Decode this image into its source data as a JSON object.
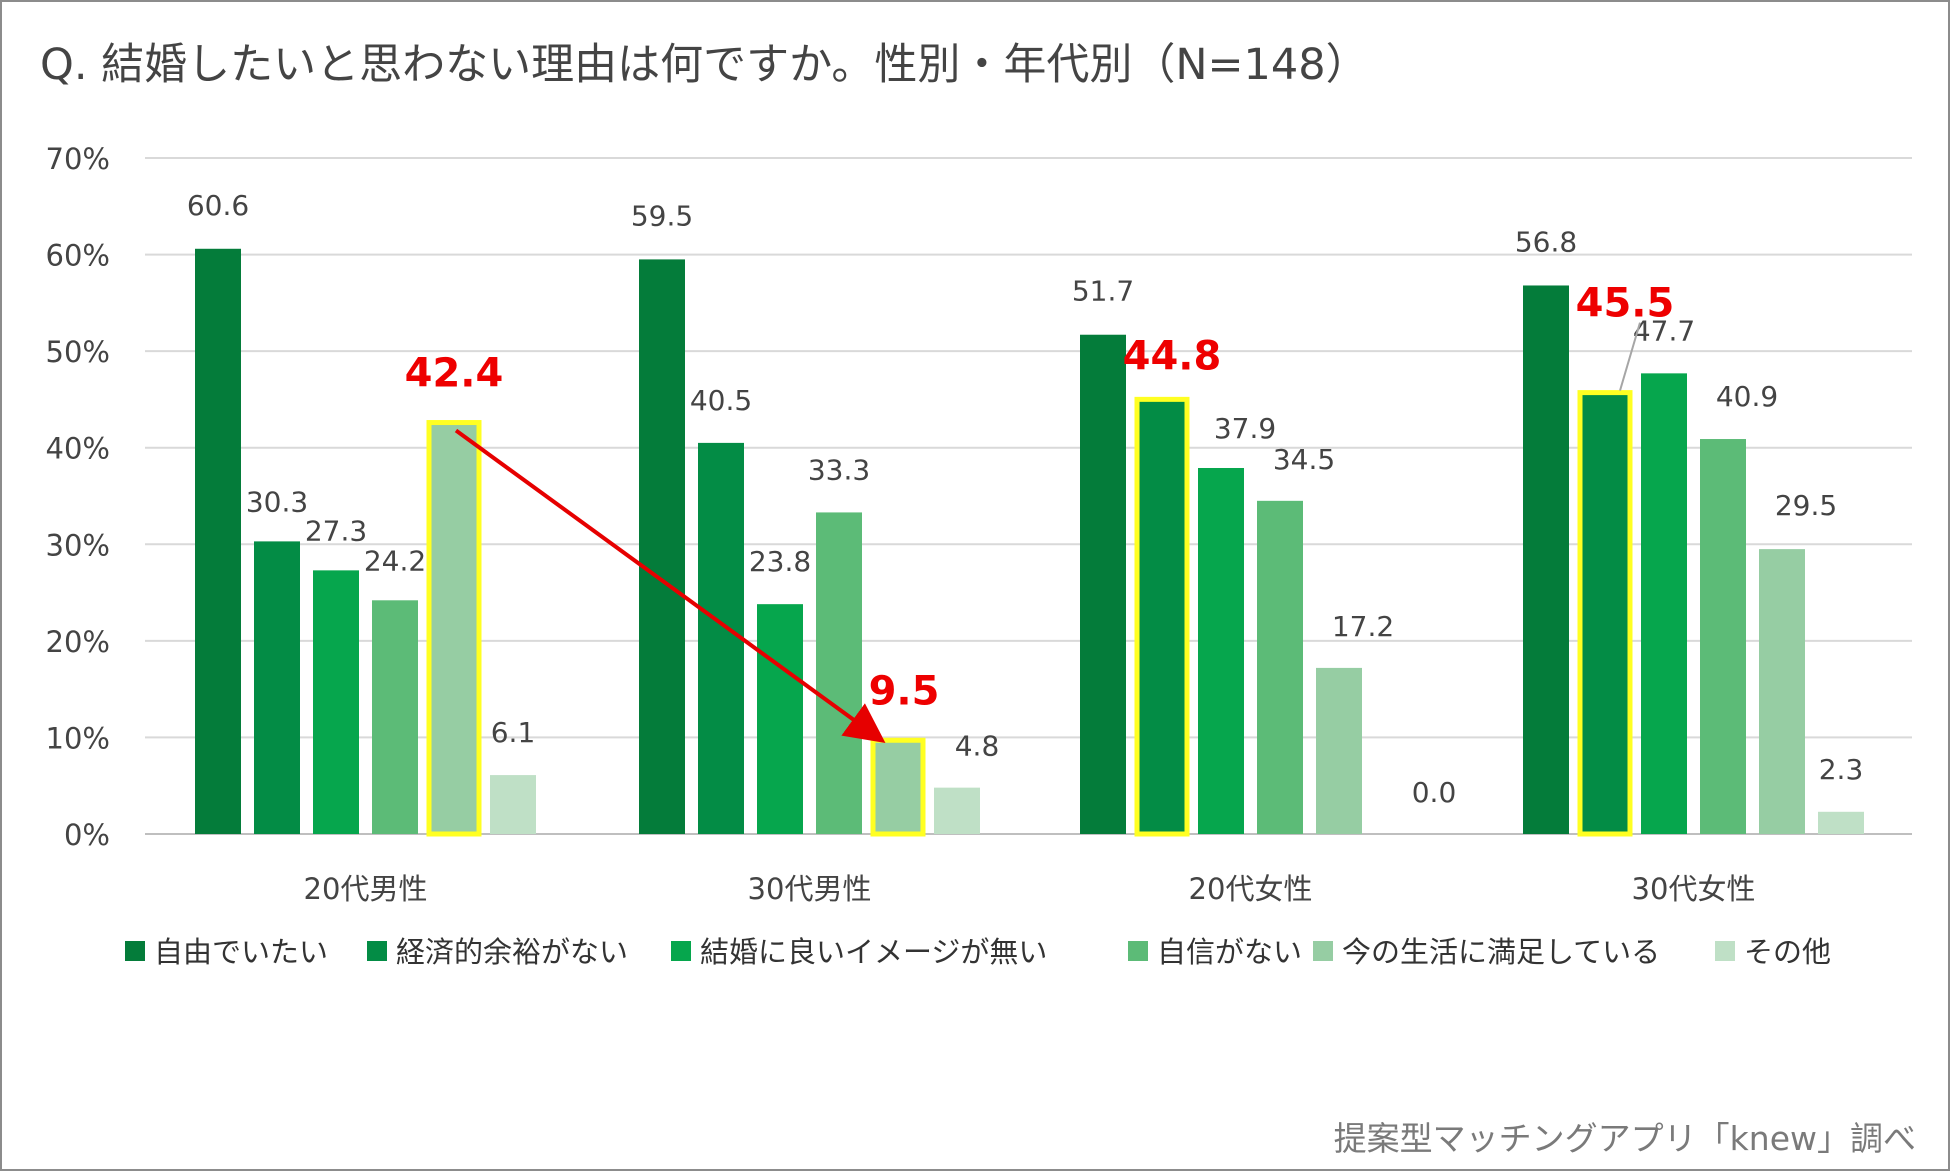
{
  "title": "Q. 結婚したいと思わない理由は何ですか。性別・年代別（N=148）",
  "source": "提案型マッチングアプリ「knew」調べ",
  "colors": {
    "series": [
      "#047c3a",
      "#038c45",
      "#06a64d",
      "#5cbb77",
      "#96cda3",
      "#bfe0c6"
    ],
    "highlight_border": "#ffff22",
    "highlight_text": "#ee0000",
    "arrow": "#e60000",
    "grid": "#d9d9d9",
    "label": "#444444"
  },
  "chart_data": {
    "type": "bar",
    "title": "Q. 結婚したいと思わない理由は何ですか。性別・年代別（N=148）",
    "categories": [
      "20代男性",
      "30代男性",
      "20代女性",
      "30代女性"
    ],
    "series": [
      {
        "name": "自由でいたい",
        "values": [
          60.6,
          59.5,
          51.7,
          56.8
        ]
      },
      {
        "name": "経済的余裕がない",
        "values": [
          30.3,
          40.5,
          44.8,
          45.5
        ]
      },
      {
        "name": "結婚に良いイメージが無い",
        "values": [
          27.3,
          23.8,
          37.9,
          47.7
        ]
      },
      {
        "name": "自信がない",
        "values": [
          24.2,
          33.3,
          34.5,
          40.9
        ]
      },
      {
        "name": "今の生活に満足している",
        "values": [
          42.4,
          9.5,
          17.2,
          29.5
        ]
      },
      {
        "name": "その他",
        "values": [
          6.1,
          4.8,
          0.0,
          2.3
        ]
      }
    ],
    "yticks": [
      "0%",
      "10%",
      "20%",
      "30%",
      "40%",
      "50%",
      "60%",
      "70%"
    ],
    "ylim": [
      0,
      70
    ],
    "xlabel": "",
    "ylabel": "",
    "legend_position": "bottom",
    "highlights": [
      {
        "category": 0,
        "series": 4,
        "label": "42.4"
      },
      {
        "category": 1,
        "series": 4,
        "label": "9.5"
      },
      {
        "category": 2,
        "series": 1,
        "label": "44.8"
      },
      {
        "category": 3,
        "series": 1,
        "label": "45.5"
      }
    ],
    "arrow": {
      "from": {
        "category": 0,
        "series": 4
      },
      "to": {
        "category": 1,
        "series": 4
      }
    }
  }
}
